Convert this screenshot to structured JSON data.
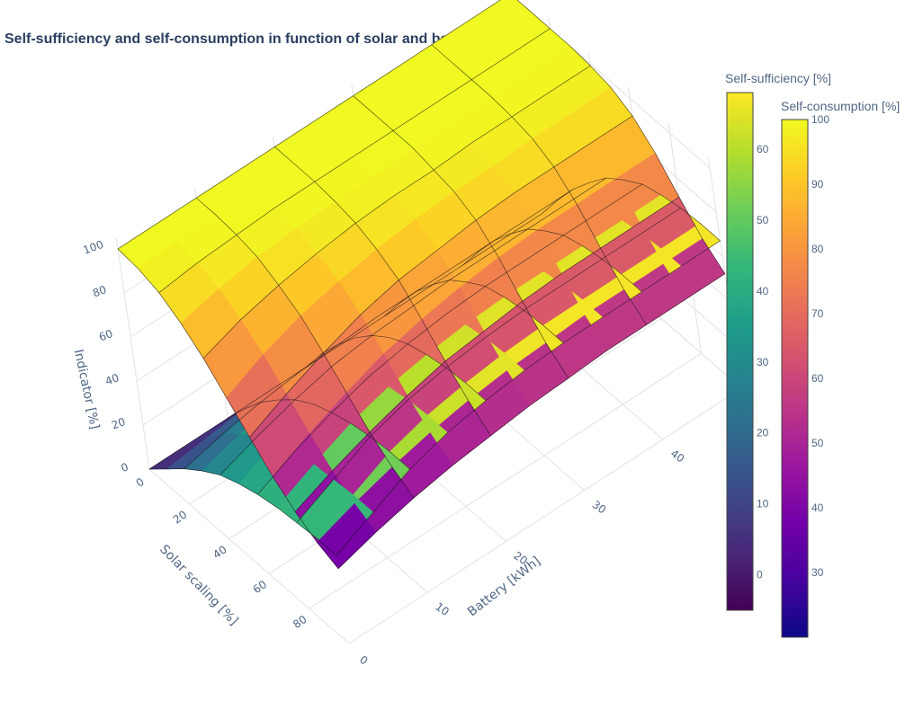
{
  "title": "Self-sufficiency and self-consumption in function of solar and battery size",
  "chart_data": {
    "type": "surface3d",
    "title": "Self-sufficiency and self-consumption in function of solar and battery size",
    "axes": {
      "x": {
        "title": "Solar scaling [%]",
        "range": [
          0,
          100
        ],
        "ticks": [
          0,
          20,
          40,
          60,
          80
        ]
      },
      "y": {
        "title": "Battery [kWh]",
        "range": [
          0,
          50
        ],
        "ticks": [
          0,
          10,
          20,
          30,
          40
        ]
      },
      "z": {
        "title": "Indicator [%]",
        "range": [
          0,
          105
        ],
        "ticks": [
          0,
          20,
          40,
          60,
          80,
          100
        ]
      }
    },
    "grid": true,
    "series": [
      {
        "name": "Self-sufficiency [%]",
        "colorscale": "Viridis",
        "colorbar_ticks": [
          0,
          10,
          20,
          30,
          40,
          50,
          60
        ],
        "cmin": -5,
        "cmax": 68,
        "x": [
          0,
          10,
          20,
          30,
          40,
          50,
          60,
          70,
          80,
          90,
          100
        ],
        "y": [
          0,
          5,
          10,
          15,
          20,
          25,
          30,
          35,
          40,
          45,
          50
        ],
        "z": [
          [
            0,
            0,
            0,
            0,
            0,
            0,
            0,
            0,
            0,
            0,
            0
          ],
          [
            8,
            10,
            12,
            13,
            14,
            14,
            14,
            14,
            14,
            14,
            14
          ],
          [
            16,
            20,
            23,
            25,
            26,
            27,
            27,
            27,
            27,
            27,
            27
          ],
          [
            23,
            28,
            32,
            35,
            37,
            38,
            38,
            38,
            38,
            38,
            38
          ],
          [
            29,
            35,
            40,
            44,
            46,
            47,
            48,
            48,
            48,
            48,
            48
          ],
          [
            33,
            40,
            46,
            50,
            53,
            54,
            55,
            55,
            55,
            55,
            55
          ],
          [
            36,
            44,
            50,
            55,
            58,
            60,
            61,
            61,
            61,
            61,
            61
          ],
          [
            38,
            46,
            53,
            58,
            61,
            63,
            64,
            64,
            64,
            64,
            64
          ],
          [
            39,
            47,
            55,
            60,
            63,
            65,
            66,
            66,
            66,
            66,
            66
          ],
          [
            40,
            48,
            56,
            61,
            64,
            66,
            67,
            67,
            67,
            67,
            67
          ],
          [
            40,
            48,
            56,
            61,
            64,
            66,
            67,
            67,
            67,
            67,
            67
          ]
        ]
      },
      {
        "name": "Self-consumption [%]",
        "colorscale": "Plasma",
        "colorbar_ticks": [
          30,
          40,
          50,
          60,
          70,
          80,
          90,
          100
        ],
        "cmin": 20,
        "cmax": 100,
        "x": [
          0,
          10,
          20,
          30,
          40,
          50,
          60,
          70,
          80,
          90,
          100
        ],
        "y": [
          0,
          5,
          10,
          15,
          20,
          25,
          30,
          35,
          40,
          45,
          50
        ],
        "z": [
          [
            100,
            100,
            100,
            100,
            100,
            100,
            100,
            100,
            100,
            100,
            100
          ],
          [
            99,
            100,
            100,
            100,
            100,
            100,
            100,
            100,
            100,
            100,
            100
          ],
          [
            96,
            98,
            99,
            100,
            100,
            100,
            100,
            100,
            100,
            100,
            100
          ],
          [
            90,
            94,
            97,
            98,
            99,
            99,
            100,
            100,
            100,
            100,
            100
          ],
          [
            82,
            88,
            92,
            95,
            97,
            98,
            98,
            99,
            99,
            99,
            99
          ],
          [
            72,
            80,
            86,
            90,
            93,
            95,
            96,
            96,
            97,
            97,
            97
          ],
          [
            62,
            70,
            77,
            83,
            87,
            89,
            91,
            92,
            92,
            92,
            92
          ],
          [
            52,
            60,
            67,
            73,
            77,
            80,
            82,
            83,
            83,
            83,
            83
          ],
          [
            44,
            51,
            57,
            62,
            66,
            68,
            70,
            71,
            71,
            71,
            71
          ],
          [
            38,
            44,
            49,
            53,
            56,
            58,
            59,
            60,
            60,
            60,
            60
          ],
          [
            34,
            39,
            43,
            46,
            48,
            50,
            51,
            52,
            52,
            52,
            52
          ]
        ]
      }
    ]
  }
}
